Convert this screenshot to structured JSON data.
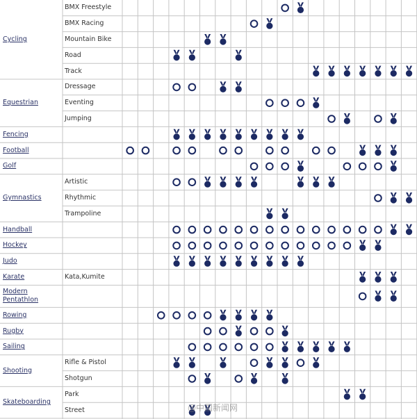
{
  "sports": [
    {
      "name": "Cycling",
      "rows": [
        {
          "event": "BMX Freestyle",
          "sessions": [
            10
          ],
          "medals": [
            11
          ]
        },
        {
          "event": "BMX Racing",
          "sessions": [
            8
          ],
          "medals": [
            9
          ]
        },
        {
          "event": "Mountain Bike",
          "sessions": [],
          "medals": [
            5,
            6
          ]
        },
        {
          "event": "Road",
          "sessions": [],
          "medals": [
            3,
            4,
            7
          ]
        },
        {
          "event": "Track",
          "sessions": [],
          "medals": [
            12,
            13,
            14,
            15,
            16,
            17,
            18
          ]
        }
      ]
    },
    {
      "name": "Equestrian",
      "rows": [
        {
          "event": "Dressage",
          "sessions": [
            3,
            4
          ],
          "medals": [
            6,
            7
          ]
        },
        {
          "event": "Eventing",
          "sessions": [
            9,
            10,
            11
          ],
          "medals": [
            12
          ]
        },
        {
          "event": "Jumping",
          "sessions": [
            13,
            16
          ],
          "medals": [
            14,
            17
          ]
        }
      ]
    },
    {
      "name": "Fencing",
      "rows": [
        {
          "sessions": [],
          "medals": [
            3,
            4,
            5,
            6,
            7,
            8,
            9,
            10,
            11
          ]
        }
      ]
    },
    {
      "name": "Football",
      "rows": [
        {
          "sessions": [
            0,
            1,
            3,
            4,
            6,
            7,
            9,
            10,
            12,
            13
          ],
          "medals": [
            15,
            16,
            17
          ]
        }
      ]
    },
    {
      "name": "Golf",
      "rows": [
        {
          "sessions": [
            8,
            9,
            10,
            14,
            15,
            16
          ],
          "medals": [
            11,
            17
          ]
        }
      ]
    },
    {
      "name": "Gymnastics",
      "rows": [
        {
          "event": "Artistic",
          "sessions": [
            3,
            4
          ],
          "medals": [
            5,
            6,
            7,
            8,
            11,
            12,
            13
          ]
        },
        {
          "event": "Rhythmic",
          "sessions": [
            16
          ],
          "medals": [
            17,
            18
          ]
        },
        {
          "event": "Trampoline",
          "sessions": [],
          "medals": [
            9,
            10
          ]
        }
      ]
    },
    {
      "name": "Handball",
      "rows": [
        {
          "sessions": [
            3,
            4,
            5,
            6,
            7,
            8,
            9,
            10,
            11,
            12,
            13,
            14,
            15,
            16
          ],
          "medals": [
            17,
            18
          ]
        }
      ]
    },
    {
      "name": "Hockey",
      "rows": [
        {
          "sessions": [
            3,
            4,
            5,
            6,
            7,
            8,
            9,
            10,
            11,
            12,
            13,
            14
          ],
          "medals": [
            15,
            16
          ]
        }
      ]
    },
    {
      "name": "Judo",
      "rows": [
        {
          "sessions": [],
          "medals": [
            3,
            4,
            5,
            6,
            7,
            8,
            9,
            10,
            11
          ]
        }
      ]
    },
    {
      "name": "Karate",
      "rows": [
        {
          "event": "Kata,Kumite",
          "sessions": [],
          "medals": [
            15,
            16,
            17
          ]
        }
      ]
    },
    {
      "name": "Modern Pentathlon",
      "rows": [
        {
          "sessions": [
            15
          ],
          "medals": [
            16,
            17
          ]
        }
      ]
    },
    {
      "name": "Rowing",
      "rows": [
        {
          "sessions": [
            2,
            3,
            4,
            5
          ],
          "medals": [
            6,
            7,
            8,
            9
          ]
        }
      ]
    },
    {
      "name": "Rugby",
      "rows": [
        {
          "sessions": [
            5,
            6,
            8,
            9
          ],
          "medals": [
            7,
            10
          ]
        }
      ]
    },
    {
      "name": "Sailing",
      "rows": [
        {
          "sessions": [
            4,
            5,
            6,
            7,
            8,
            9
          ],
          "medals": [
            10,
            11,
            12,
            13,
            14
          ]
        }
      ]
    },
    {
      "name": "Shooting",
      "rows": [
        {
          "event": "Rifle & Pistol",
          "sessions": [
            8,
            11
          ],
          "medals": [
            3,
            4,
            6,
            9,
            10,
            12
          ]
        },
        {
          "event": "Shotgun",
          "sessions": [
            4,
            7
          ],
          "medals": [
            5,
            8,
            10
          ]
        }
      ]
    },
    {
      "name": "Skateboarding",
      "rows": [
        {
          "event": "Park",
          "sessions": [],
          "medals": [
            14,
            15
          ]
        },
        {
          "event": "Street",
          "sessions": [],
          "medals": [
            4,
            5
          ]
        }
      ]
    }
  ],
  "watermark": "@中国新闻网"
}
